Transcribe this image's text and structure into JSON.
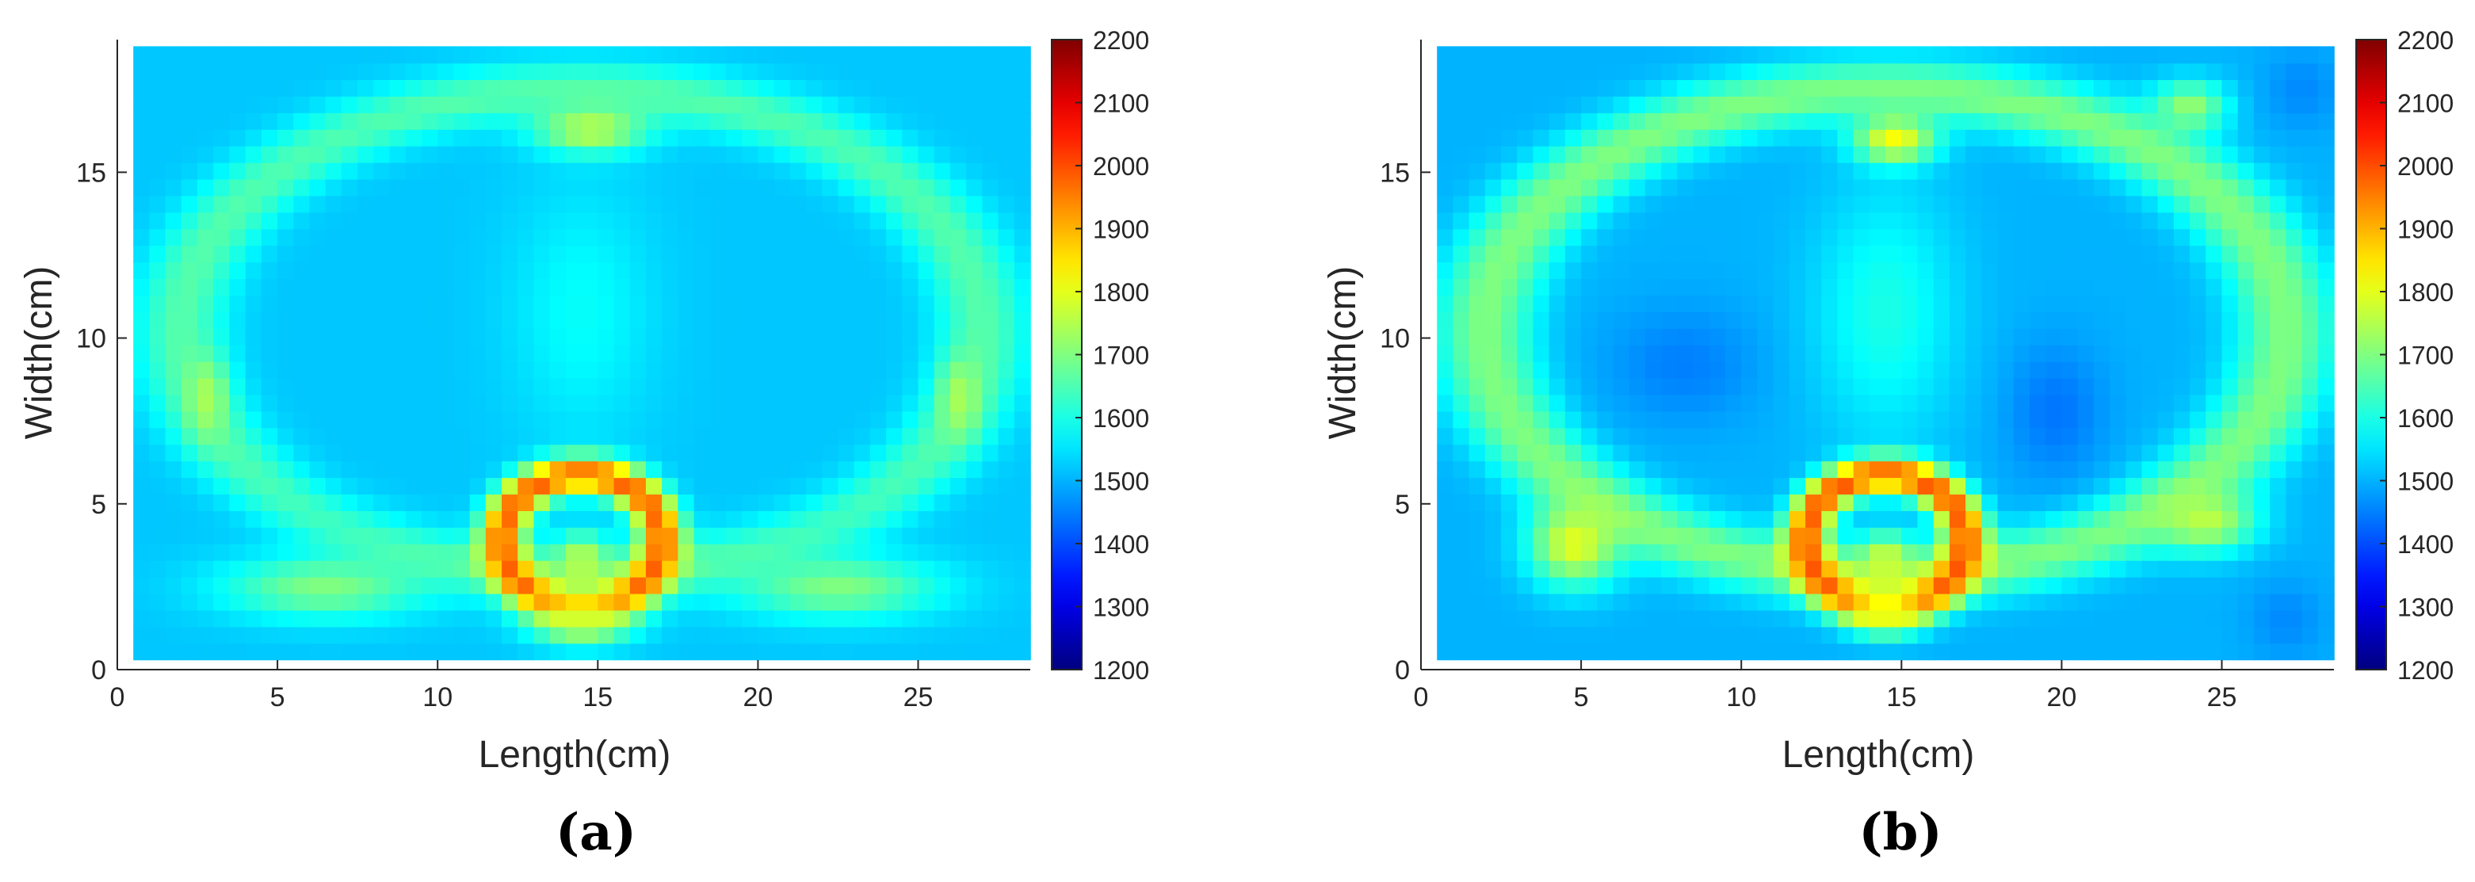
{
  "chart_data": [
    {
      "type": "heatmap",
      "panel_label": "(a)",
      "xlabel": "Length(cm)",
      "ylabel": "Width(cm)",
      "xlim": [
        0,
        28.5
      ],
      "ylim": [
        0,
        19
      ],
      "data_extent": {
        "x": [
          0.5,
          28.5
        ],
        "y": [
          0.3,
          18.8
        ]
      },
      "xticks": [
        0,
        5,
        10,
        15,
        20,
        25
      ],
      "yticks": [
        0,
        5,
        10,
        15
      ],
      "colorbar": {
        "min": 1200,
        "max": 2200,
        "ticks": [
          1200,
          1300,
          1400,
          1500,
          1600,
          1700,
          1800,
          1900,
          2000,
          2100,
          2200
        ],
        "colormap": "jet"
      },
      "background_value": 1520,
      "features": [
        {
          "kind": "ellipse-ring",
          "name": "outer-boundary",
          "cx": 14.5,
          "cy": 10.2,
          "rx": 12.5,
          "ry": 7.3,
          "width": 1.2,
          "value": 1660
        },
        {
          "kind": "blob",
          "name": "left-lung",
          "cx": 8.2,
          "cy": 9.5,
          "rx": 3.8,
          "ry": 5.2,
          "value": 1520
        },
        {
          "kind": "blob",
          "name": "right-lung",
          "cx": 20.8,
          "cy": 9.5,
          "rx": 3.8,
          "ry": 5.2,
          "value": 1520
        },
        {
          "kind": "blob",
          "name": "mediastinum",
          "cx": 14.5,
          "cy": 10.8,
          "rx": 2.8,
          "ry": 4.8,
          "value": 1580
        },
        {
          "kind": "blob",
          "name": "sternum",
          "cx": 14.8,
          "cy": 16.3,
          "rx": 2.2,
          "ry": 0.9,
          "value": 1760
        },
        {
          "kind": "blob",
          "name": "left-side",
          "cx": 2.8,
          "cy": 8.2,
          "rx": 0.8,
          "ry": 1.5,
          "value": 1740
        },
        {
          "kind": "blob",
          "name": "right-side",
          "cx": 26.3,
          "cy": 8.2,
          "rx": 0.8,
          "ry": 1.5,
          "value": 1740
        },
        {
          "kind": "blob",
          "name": "lower-left",
          "cx": 6.5,
          "cy": 2.5,
          "rx": 4.0,
          "ry": 1.2,
          "value": 1700
        },
        {
          "kind": "blob",
          "name": "lower-right",
          "cx": 22.5,
          "cy": 2.5,
          "rx": 4.0,
          "ry": 1.2,
          "value": 1700
        },
        {
          "kind": "ellipse-ring",
          "name": "spine-ring",
          "cx": 14.5,
          "cy": 3.9,
          "rx": 2.5,
          "ry": 2.0,
          "width": 0.8,
          "value": 1980
        },
        {
          "kind": "blob",
          "name": "spine-core",
          "cx": 14.5,
          "cy": 3.3,
          "rx": 1.0,
          "ry": 1.0,
          "value": 1760
        },
        {
          "kind": "blob",
          "name": "below-spine",
          "cx": 14.5,
          "cy": 1.5,
          "rx": 2.0,
          "ry": 0.9,
          "value": 1780
        }
      ]
    },
    {
      "type": "heatmap",
      "panel_label": "(b)",
      "xlabel": "Length(cm)",
      "ylabel": "Width(cm)",
      "xlim": [
        0,
        28.5
      ],
      "ylim": [
        0,
        19
      ],
      "data_extent": {
        "x": [
          0.5,
          28.5
        ],
        "y": [
          0.3,
          18.8
        ]
      },
      "xticks": [
        0,
        5,
        10,
        15,
        20,
        25
      ],
      "yticks": [
        0,
        5,
        10,
        15
      ],
      "colorbar": {
        "min": 1200,
        "max": 2200,
        "ticks": [
          1200,
          1300,
          1400,
          1500,
          1600,
          1700,
          1800,
          1900,
          2000,
          2100,
          2200
        ],
        "colormap": "jet"
      },
      "background_value": 1500,
      "features": [
        {
          "kind": "ellipse-ring",
          "name": "outer-boundary",
          "cx": 14.5,
          "cy": 10.2,
          "rx": 12.5,
          "ry": 7.3,
          "width": 1.3,
          "value": 1700
        },
        {
          "kind": "blob",
          "name": "left-lung",
          "cx": 8.2,
          "cy": 9.2,
          "rx": 3.0,
          "ry": 2.2,
          "value": 1450
        },
        {
          "kind": "blob",
          "name": "right-lung",
          "cx": 19.8,
          "cy": 7.8,
          "rx": 2.0,
          "ry": 2.6,
          "value": 1440
        },
        {
          "kind": "blob",
          "name": "mediastinum",
          "cx": 14.5,
          "cy": 10.8,
          "rx": 2.8,
          "ry": 4.8,
          "value": 1600
        },
        {
          "kind": "blob",
          "name": "sternum",
          "cx": 14.8,
          "cy": 16.0,
          "rx": 1.6,
          "ry": 0.9,
          "value": 1820
        },
        {
          "kind": "blob",
          "name": "lower-left",
          "cx": 4.8,
          "cy": 3.8,
          "rx": 1.8,
          "ry": 1.6,
          "value": 1800
        },
        {
          "kind": "blob",
          "name": "lower-right",
          "cx": 24.5,
          "cy": 4.5,
          "rx": 2.0,
          "ry": 1.2,
          "value": 1760
        },
        {
          "kind": "blob",
          "name": "upper-right",
          "cx": 24.0,
          "cy": 17.0,
          "rx": 1.5,
          "ry": 1.0,
          "value": 1720
        },
        {
          "kind": "blob",
          "name": "bottom-right-low",
          "cx": 27.0,
          "cy": 1.5,
          "rx": 1.5,
          "ry": 1.5,
          "value": 1460
        },
        {
          "kind": "blob",
          "name": "top-right-low",
          "cx": 27.5,
          "cy": 17.5,
          "rx": 1.5,
          "ry": 1.5,
          "value": 1460
        },
        {
          "kind": "ellipse-ring",
          "name": "spine-ring",
          "cx": 14.5,
          "cy": 3.9,
          "rx": 2.5,
          "ry": 2.0,
          "width": 0.8,
          "value": 1990
        },
        {
          "kind": "blob",
          "name": "spine-core",
          "cx": 14.5,
          "cy": 3.3,
          "rx": 1.0,
          "ry": 1.0,
          "value": 1780
        },
        {
          "kind": "blob",
          "name": "below-spine",
          "cx": 14.5,
          "cy": 1.8,
          "rx": 1.5,
          "ry": 0.9,
          "value": 1800
        }
      ]
    }
  ]
}
